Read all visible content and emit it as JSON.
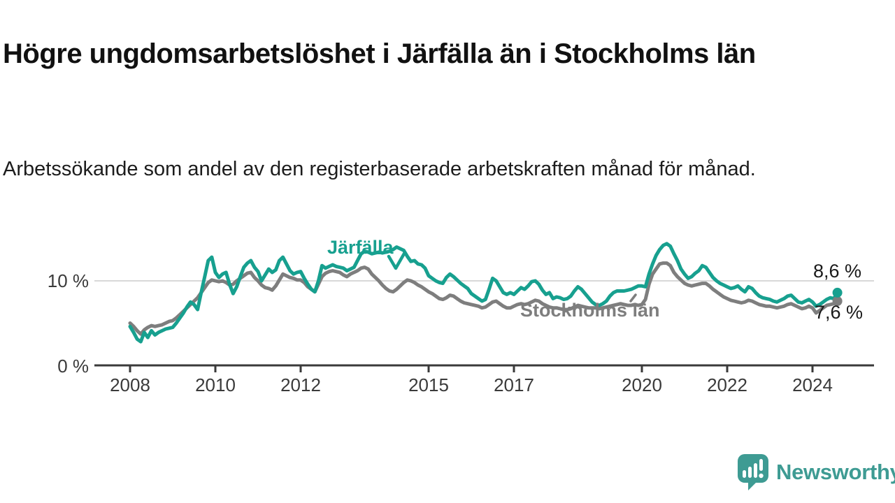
{
  "title": "Högre ungdomsarbetslöshet i Järfälla än i Stockholms län",
  "subtitle": "Arbetssökande som andel av den registerbaserade arbetskraften månad för månad.",
  "branding": {
    "name": "Newsworthy",
    "logo_color": "#3E9B93"
  },
  "colors": {
    "jarfalla": "#17A08F",
    "stockholms_lan": "#7E7E7E",
    "axis": "#3A3A3A",
    "gridline": "#D8D8D8",
    "value_label": "#1A1A1A"
  },
  "chart_data": {
    "type": "line",
    "frequency": "monthly",
    "x_start": "2008-01",
    "x_end": "2024-08",
    "grid": "single horizontal gridline at 10 %",
    "x_tick_labels": [
      "2008",
      "2010",
      "2012",
      "2015",
      "2017",
      "2020",
      "2022",
      "2024"
    ],
    "y_axis": {
      "tick_labels": [
        "0 %",
        "10 %"
      ],
      "gridline_value": 10,
      "ylim": [
        0,
        16
      ]
    },
    "series": [
      {
        "id": "jarfalla",
        "name": "Järfälla",
        "color": "#17A08F",
        "end_label": "8,6 %",
        "end_value": 8.6,
        "values": [
          4.6,
          3.9,
          3.1,
          2.8,
          3.9,
          3.3,
          4.1,
          3.6,
          3.9,
          4.1,
          4.3,
          4.4,
          4.5,
          5.0,
          5.6,
          6.2,
          6.9,
          7.5,
          7.2,
          6.6,
          8.6,
          10.5,
          12.4,
          12.8,
          11.0,
          10.4,
          10.8,
          11.0,
          9.6,
          8.5,
          9.3,
          10.5,
          11.6,
          12.1,
          12.4,
          11.6,
          11.1,
          10.0,
          10.7,
          11.4,
          11.0,
          11.3,
          12.4,
          12.8,
          12.0,
          11.2,
          10.8,
          11.0,
          11.1,
          10.3,
          9.6,
          9.0,
          8.7,
          10.0,
          11.8,
          11.5,
          11.7,
          11.9,
          11.7,
          11.6,
          11.5,
          11.2,
          11.4,
          11.6,
          12.4,
          13.2,
          13.5,
          13.4,
          13.2,
          13.3,
          13.4,
          13.3,
          13.4,
          13.5,
          13.7,
          14.0,
          13.8,
          13.6,
          12.9,
          12.3,
          12.4,
          12.0,
          11.9,
          11.5,
          10.6,
          10.3,
          10.0,
          9.8,
          9.7,
          10.4,
          10.8,
          10.5,
          10.1,
          9.7,
          9.4,
          9.1,
          8.5,
          8.2,
          7.9,
          7.6,
          7.8,
          9.0,
          10.3,
          10.0,
          9.3,
          8.6,
          8.4,
          8.6,
          8.4,
          8.8,
          9.2,
          9.0,
          9.4,
          9.9,
          10.0,
          9.6,
          8.9,
          8.4,
          8.6,
          7.9,
          8.1,
          8.0,
          7.8,
          7.9,
          8.2,
          8.8,
          9.3,
          9.0,
          8.5,
          8.0,
          7.5,
          7.2,
          7.1,
          7.3,
          7.6,
          8.2,
          8.6,
          8.8,
          8.8,
          8.8,
          8.9,
          9.0,
          9.2,
          9.4,
          9.4,
          9.3,
          10.8,
          12.0,
          13.0,
          13.7,
          14.2,
          14.4,
          14.1,
          13.2,
          12.4,
          11.4,
          10.8,
          10.3,
          10.5,
          10.9,
          11.2,
          11.8,
          11.6,
          11.0,
          10.4,
          10.0,
          9.7,
          9.5,
          9.3,
          9.1,
          9.2,
          9.4,
          9.0,
          8.7,
          9.3,
          9.1,
          8.6,
          8.2,
          8.0,
          7.9,
          7.8,
          7.6,
          7.5,
          7.7,
          7.9,
          8.2,
          8.3,
          7.9,
          7.5,
          7.4,
          7.6,
          7.8,
          7.5,
          7.0,
          7.2,
          7.5,
          7.8,
          8.0,
          7.9,
          8.6
        ]
      },
      {
        "id": "stockholms-lan",
        "name": "Stockholms län",
        "color": "#7E7E7E",
        "end_label": "7,6 %",
        "end_value": 7.6,
        "values": [
          5.0,
          4.6,
          4.1,
          3.7,
          4.2,
          4.5,
          4.7,
          4.6,
          4.7,
          4.8,
          5.0,
          5.2,
          5.3,
          5.6,
          6.0,
          6.4,
          6.8,
          7.2,
          7.6,
          8.0,
          8.6,
          9.2,
          9.8,
          10.1,
          10.0,
          9.9,
          10.0,
          9.8,
          9.5,
          9.6,
          10.0,
          10.3,
          10.6,
          10.9,
          11.0,
          10.4,
          10.0,
          9.5,
          9.2,
          9.1,
          8.9,
          9.4,
          10.1,
          10.8,
          10.6,
          10.4,
          10.3,
          10.1,
          10.1,
          9.8,
          9.3,
          9.0,
          8.7,
          9.6,
          10.5,
          10.9,
          11.1,
          11.2,
          11.1,
          11.0,
          10.7,
          10.5,
          10.8,
          11.0,
          11.2,
          11.5,
          11.6,
          11.4,
          10.8,
          10.4,
          10.0,
          9.5,
          9.1,
          8.8,
          8.7,
          9.0,
          9.4,
          9.8,
          10.1,
          10.0,
          9.8,
          9.5,
          9.3,
          9.0,
          8.7,
          8.5,
          8.2,
          7.9,
          7.8,
          8.0,
          8.3,
          8.2,
          7.9,
          7.6,
          7.4,
          7.3,
          7.2,
          7.1,
          7.0,
          6.8,
          6.9,
          7.2,
          7.5,
          7.6,
          7.3,
          7.0,
          6.8,
          6.8,
          7.0,
          7.2,
          7.3,
          7.2,
          7.3,
          7.5,
          7.7,
          7.6,
          7.3,
          7.1,
          6.9,
          6.8,
          6.8,
          6.7,
          6.6,
          6.6,
          6.7,
          6.9,
          7.1,
          7.0,
          6.9,
          6.8,
          6.8,
          6.8,
          6.7,
          6.8,
          6.9,
          7.0,
          7.1,
          7.2,
          7.3,
          7.2,
          7.1,
          7.1,
          7.2,
          7.1,
          7.2,
          7.8,
          9.6,
          10.8,
          11.4,
          12.0,
          12.1,
          12.1,
          11.8,
          11.0,
          10.5,
          10.1,
          9.7,
          9.5,
          9.4,
          9.5,
          9.6,
          9.7,
          9.7,
          9.4,
          9.0,
          8.7,
          8.4,
          8.1,
          7.9,
          7.7,
          7.6,
          7.5,
          7.4,
          7.5,
          7.7,
          7.6,
          7.4,
          7.2,
          7.1,
          7.0,
          7.0,
          6.9,
          6.8,
          6.9,
          7.0,
          7.2,
          7.3,
          7.1,
          6.9,
          6.7,
          6.8,
          7.0,
          6.8,
          6.2,
          6.5,
          6.8,
          7.1,
          7.2,
          7.3,
          7.6
        ]
      }
    ]
  }
}
